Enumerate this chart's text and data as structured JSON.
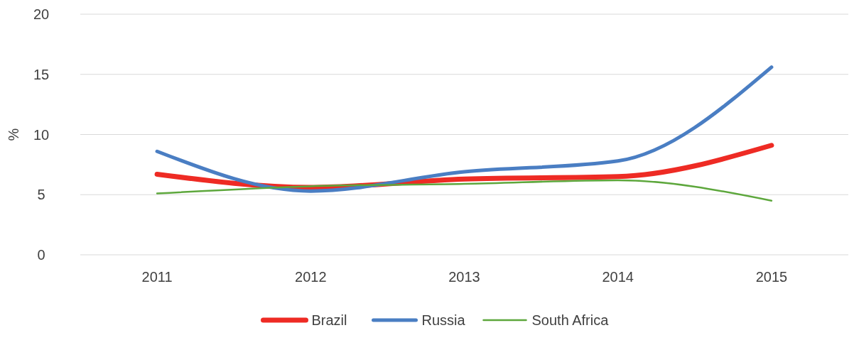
{
  "chart_data": {
    "type": "line",
    "ylabel": "%",
    "categories": [
      "2011",
      "2012",
      "2013",
      "2014",
      "2015"
    ],
    "series": [
      {
        "name": "Brazil",
        "color": "#ee2b24",
        "values": [
          6.7,
          5.6,
          6.3,
          6.5,
          9.1
        ]
      },
      {
        "name": "Russia",
        "color": "#4a7ec3",
        "values": [
          8.6,
          5.3,
          6.9,
          7.8,
          15.6
        ]
      },
      {
        "name": "South Africa",
        "color": "#5da73c",
        "values": [
          5.1,
          5.7,
          5.9,
          6.2,
          4.5
        ]
      }
    ],
    "ylim": [
      0,
      20
    ],
    "yticks": [
      0,
      5,
      10,
      15,
      20
    ],
    "grid": "y",
    "legend": "bottom"
  }
}
